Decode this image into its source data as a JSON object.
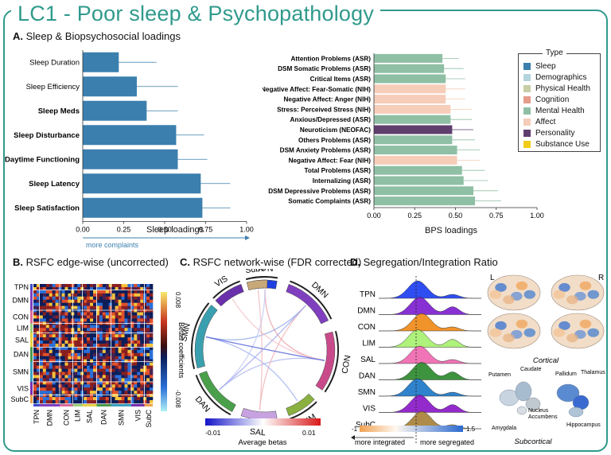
{
  "title": "LC1 - Poor sleep & Psychopathology",
  "panelA": {
    "letter": "A.",
    "heading": "Sleep & Biopsychosocial loadings",
    "sleep": {
      "xlabel": "Sleep loadings",
      "ticks": [
        "0.00",
        "0.25",
        "0.50",
        "0.75",
        "1.00"
      ],
      "note": "more complaints",
      "items": [
        {
          "label": "Sleep Duration",
          "value": 0.22,
          "err": 0.45
        },
        {
          "label": "Sleep Efficiency",
          "value": 0.33,
          "err": 0.58
        },
        {
          "label": "Sleep Meds",
          "value": 0.39,
          "err": 0.58
        },
        {
          "label": "Sleep Disturbance",
          "value": 0.57,
          "err": 0.74
        },
        {
          "label": "Daytime Functioning",
          "value": 0.58,
          "err": 0.76
        },
        {
          "label": "Sleep Latency",
          "value": 0.72,
          "err": 0.9
        },
        {
          "label": "Sleep Satisfaction",
          "value": 0.73,
          "err": 0.9
        }
      ]
    },
    "bps": {
      "xlabel": "BPS loadings",
      "ticks": [
        "0.00",
        "0.25",
        "0.50",
        "0.75",
        "1.00"
      ],
      "items": [
        {
          "label": "Attention Problems (ASR)",
          "value": 0.42,
          "err": 0.52,
          "type": "Mental Health"
        },
        {
          "label": "DSM Somatic Problems (ASR)",
          "value": 0.43,
          "err": 0.55,
          "type": "Mental Health"
        },
        {
          "label": "Critical Items (ASR)",
          "value": 0.44,
          "err": 0.56,
          "type": "Mental Health"
        },
        {
          "label": "Negative Affect: Fear-Somatic (NIH)",
          "value": 0.44,
          "err": 0.56,
          "type": "Affect"
        },
        {
          "label": "Negative Affect: Anger (NIH)",
          "value": 0.44,
          "err": 0.56,
          "type": "Affect"
        },
        {
          "label": "Stress: Perceived Stress (NIH)",
          "value": 0.47,
          "err": 0.6,
          "type": "Affect"
        },
        {
          "label": "Anxious/Depressed (ASR)",
          "value": 0.47,
          "err": 0.6,
          "type": "Mental Health"
        },
        {
          "label": "Neuroticism (NEOFAC)",
          "value": 0.48,
          "err": 0.61,
          "type": "Personality"
        },
        {
          "label": "Others Problems (ASR)",
          "value": 0.48,
          "err": 0.62,
          "type": "Mental Health"
        },
        {
          "label": "DSM Anxiety Problems (ASR)",
          "value": 0.51,
          "err": 0.65,
          "type": "Mental Health"
        },
        {
          "label": "Negative Affect: Fear (NIH)",
          "value": 0.51,
          "err": 0.65,
          "type": "Affect"
        },
        {
          "label": "Total Problems (ASR)",
          "value": 0.54,
          "err": 0.68,
          "type": "Mental Health"
        },
        {
          "label": "Internalizing (ASR)",
          "value": 0.55,
          "err": 0.7,
          "type": "Mental Health"
        },
        {
          "label": "DSM Depressive Problems (ASR)",
          "value": 0.61,
          "err": 0.76,
          "type": "Mental Health"
        },
        {
          "label": "Somatic Complaints (ASR)",
          "value": 0.62,
          "err": 0.78,
          "type": "Mental Health"
        }
      ]
    },
    "legend": {
      "title": "Type",
      "items": [
        {
          "label": "Sleep",
          "color": "#3b7fae"
        },
        {
          "label": "Demographics",
          "color": "#b3d4dc"
        },
        {
          "label": "Physical Health",
          "color": "#c6cfa5"
        },
        {
          "label": "Cognition",
          "color": "#e59c8a"
        },
        {
          "label": "Mental Health",
          "color": "#8fbfa4"
        },
        {
          "label": "Affect",
          "color": "#f5cdb9"
        },
        {
          "label": "Personality",
          "color": "#5f3e6e"
        },
        {
          "label": "Substance Use",
          "color": "#f1cd1a"
        }
      ]
    }
  },
  "panelB": {
    "letter": "B.",
    "heading": "RSFC edge-wise (uncorrected)",
    "rows": [
      "TPN",
      "DMN",
      "CON",
      "LIM",
      "SAL",
      "DAN",
      "SMN",
      "VIS",
      "SubC"
    ],
    "cols": [
      "TPN",
      "DMN",
      "CON",
      "LIM",
      "SAL",
      "DAN",
      "SMN",
      "VIS",
      "SubC"
    ],
    "colorbar_label": "Betas coefficients",
    "cbar_max": "0.008",
    "cbar_min": "-0.008"
  },
  "panelC": {
    "letter": "C.",
    "heading": "RSFC network-wise (FDR corrected)",
    "networks": [
      "TPN",
      "DMN",
      "CON",
      "LIM",
      "SAL",
      "DAN",
      "SMN",
      "VIS",
      "SubC"
    ],
    "colorbar_label": "Average betas",
    "cbar_min": "-0.01",
    "cbar_max": "0.01"
  },
  "panelD": {
    "letter": "D.",
    "heading": "Segregation/Integration Ratio",
    "networks": [
      "TPN",
      "DMN",
      "CON",
      "LIM",
      "SAL",
      "DAN",
      "SMN",
      "VIS",
      "SubC"
    ],
    "cbar_min": "-1",
    "cbar_max": "1.5",
    "left_note": "more integrated",
    "right_note": "more segregated",
    "brain_L": "L",
    "brain_R": "R",
    "cortical": "Cortical",
    "subcortical": "Subcortical",
    "structures": [
      "Putamen",
      "Caudate",
      "Pallidum",
      "Thalamus",
      "Nucleus Accumbens",
      "Amygdala",
      "Hippocampus"
    ]
  }
}
